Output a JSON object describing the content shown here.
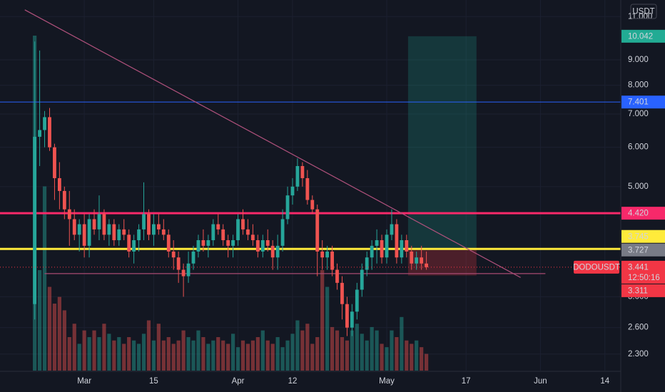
{
  "chart_data": {
    "type": "candlestick",
    "symbol": "DODOUSDT",
    "currency": "USDT",
    "countdown": "12:50:16",
    "log": true,
    "grid": true,
    "up_color": "#26a69a",
    "down_color": "#ef5350",
    "xlim": [
      -7,
      118.2
    ],
    "xticks": [
      {
        "value": 10,
        "label": "Mar"
      },
      {
        "value": 24,
        "label": "15"
      },
      {
        "value": 41,
        "label": "Apr"
      },
      {
        "value": 52,
        "label": "12"
      },
      {
        "value": 71,
        "label": "May"
      },
      {
        "value": 87,
        "label": "17"
      },
      {
        "value": 102,
        "label": "Jun"
      },
      {
        "value": 115,
        "label": "14"
      }
    ],
    "ylim": [
      2.13,
      11.88
    ],
    "yticks": [
      {
        "value": 2.3,
        "label": "2.300"
      },
      {
        "value": 2.6,
        "label": "2.600"
      },
      {
        "value": 3,
        "label": "3.000"
      },
      {
        "value": 5,
        "label": "5.000"
      },
      {
        "value": 6,
        "label": "6.000"
      },
      {
        "value": 7,
        "label": "7.000"
      },
      {
        "value": 8,
        "label": "8.000"
      },
      {
        "value": 9,
        "label": "9.000"
      },
      {
        "value": 11,
        "label": "11.000"
      }
    ],
    "open": [
      2.9,
      6.3,
      6.5,
      6.9,
      6.0,
      5.2,
      4.9,
      4.5,
      4.3,
      4.0,
      4.2,
      3.8,
      4.3,
      4.1,
      4.4,
      4.0,
      4.2,
      3.9,
      4.1,
      4.0,
      3.7,
      3.9,
      4.1,
      4.4,
      4.0,
      4.2,
      4.1,
      4.0,
      3.7,
      3.6,
      3.4,
      3.3,
      3.5,
      3.7,
      3.9,
      3.8,
      3.9,
      4.2,
      4.1,
      3.9,
      3.8,
      3.9,
      4.3,
      4.1,
      4.0,
      3.9,
      3.7,
      3.9,
      3.8,
      3.6,
      3.8,
      4.3,
      4.8,
      5.0,
      5.5,
      5.2,
      4.7,
      4.5,
      3.7,
      3.6,
      3.7,
      3.4,
      3.2,
      2.9,
      2.6,
      2.8,
      3.1,
      3.4,
      3.6,
      3.8,
      3.9,
      3.6,
      4.0,
      4.2,
      3.6,
      3.9,
      3.7,
      3.5,
      3.6,
      3.5
    ],
    "high": [
      9.8,
      9.4,
      7.1,
      7.2,
      6.1,
      5.6,
      5.0,
      4.9,
      4.5,
      4.3,
      4.4,
      4.4,
      4.5,
      4.8,
      4.5,
      4.3,
      4.3,
      4.2,
      4.3,
      4.1,
      4.0,
      4.2,
      5.1,
      4.5,
      4.4,
      4.4,
      4.3,
      4.1,
      3.9,
      3.7,
      3.5,
      3.7,
      3.8,
      4.0,
      4.1,
      4.0,
      4.3,
      4.4,
      4.2,
      4.0,
      4.0,
      4.4,
      4.5,
      4.3,
      4.2,
      4.0,
      4.0,
      4.1,
      3.9,
      4.0,
      4.5,
      5.0,
      5.2,
      5.7,
      5.6,
      5.4,
      4.8,
      4.6,
      3.9,
      3.8,
      3.8,
      3.5,
      3.3,
      3.0,
      2.9,
      3.2,
      3.5,
      3.7,
      3.9,
      4.1,
      4.0,
      4.1,
      4.5,
      4.3,
      4.0,
      4.0,
      3.8,
      3.7,
      3.8,
      3.7
    ],
    "low": [
      2.7,
      5.5,
      6.0,
      5.9,
      4.7,
      4.5,
      4.3,
      3.8,
      3.9,
      3.7,
      3.6,
      3.6,
      4.0,
      3.9,
      3.9,
      3.8,
      3.8,
      3.8,
      3.9,
      3.6,
      3.5,
      3.7,
      3.9,
      3.9,
      3.8,
      4.0,
      3.9,
      3.6,
      3.4,
      3.2,
      3.0,
      3.2,
      3.4,
      3.6,
      3.7,
      3.6,
      3.8,
      4.0,
      3.8,
      3.6,
      3.6,
      3.8,
      4.0,
      3.9,
      3.8,
      3.6,
      3.6,
      3.7,
      3.4,
      3.4,
      3.7,
      4.2,
      4.6,
      4.9,
      5.0,
      4.6,
      4.4,
      3.3,
      3.4,
      3.4,
      3.3,
      3.1,
      2.7,
      2.5,
      2.5,
      2.7,
      3.0,
      3.3,
      3.4,
      3.5,
      3.5,
      3.5,
      3.9,
      3.5,
      3.5,
      3.6,
      3.4,
      3.4,
      3.4,
      3.4
    ],
    "close": [
      6.3,
      6.5,
      6.9,
      6.0,
      5.2,
      4.9,
      4.5,
      4.3,
      4.0,
      4.2,
      3.8,
      4.3,
      4.1,
      4.4,
      4.0,
      4.2,
      3.9,
      4.1,
      4.0,
      3.7,
      3.9,
      4.1,
      4.4,
      4.0,
      4.2,
      4.1,
      4.0,
      3.7,
      3.6,
      3.4,
      3.3,
      3.5,
      3.7,
      3.9,
      3.8,
      3.9,
      4.2,
      4.1,
      3.9,
      3.8,
      3.9,
      4.3,
      4.1,
      4.0,
      3.9,
      3.7,
      3.9,
      3.8,
      3.6,
      3.8,
      4.3,
      4.8,
      5.0,
      5.5,
      5.2,
      4.7,
      4.5,
      3.7,
      3.6,
      3.7,
      3.4,
      3.2,
      2.9,
      2.6,
      2.8,
      3.1,
      3.4,
      3.6,
      3.8,
      3.9,
      3.6,
      4.0,
      4.2,
      3.6,
      3.9,
      3.7,
      3.5,
      3.6,
      3.5,
      3.441
    ],
    "volume": [
      100,
      30,
      55,
      25,
      20,
      22,
      18,
      10,
      14,
      8,
      12,
      10,
      12,
      10,
      14,
      11,
      9,
      10,
      8,
      10,
      9,
      8,
      11,
      15,
      9,
      14,
      9,
      10,
      8,
      9,
      12,
      10,
      9,
      12,
      10,
      8,
      9,
      10,
      9,
      8,
      11,
      7,
      9,
      8,
      9,
      10,
      12,
      9,
      8,
      10,
      7,
      9,
      11,
      15,
      12,
      14,
      8,
      10,
      30,
      25,
      13,
      12,
      10,
      9,
      12,
      14,
      11,
      9,
      13,
      12,
      8,
      7,
      12,
      10,
      16,
      9,
      8,
      9,
      7,
      5
    ],
    "horizontal_lines": [
      {
        "value": 7.401,
        "color": "#2962ff",
        "width": 1
      },
      {
        "value": 4.42,
        "label": "4.420",
        "color": "#f7296a",
        "width": 3
      },
      {
        "value": 3.745,
        "color": "#ffeb3b",
        "width": 3
      }
    ],
    "last_price": {
      "value": 3.441,
      "color": "#f23645"
    },
    "trendline": {
      "x": [
        -2,
        98
      ],
      "y": [
        11.35,
        3.28
      ],
      "color": "#b0517c"
    },
    "support_line": {
      "x": [
        2,
        103
      ],
      "y": [
        3.34,
        3.34
      ],
      "color": "#a84a72"
    },
    "position": {
      "x": [
        75.3,
        89.1
      ],
      "target": 10.042,
      "entry": 3.727,
      "stop": 3.311,
      "profit_color": "#22ab94",
      "loss_color": "#f23645",
      "entry_color": "#787b86"
    }
  }
}
